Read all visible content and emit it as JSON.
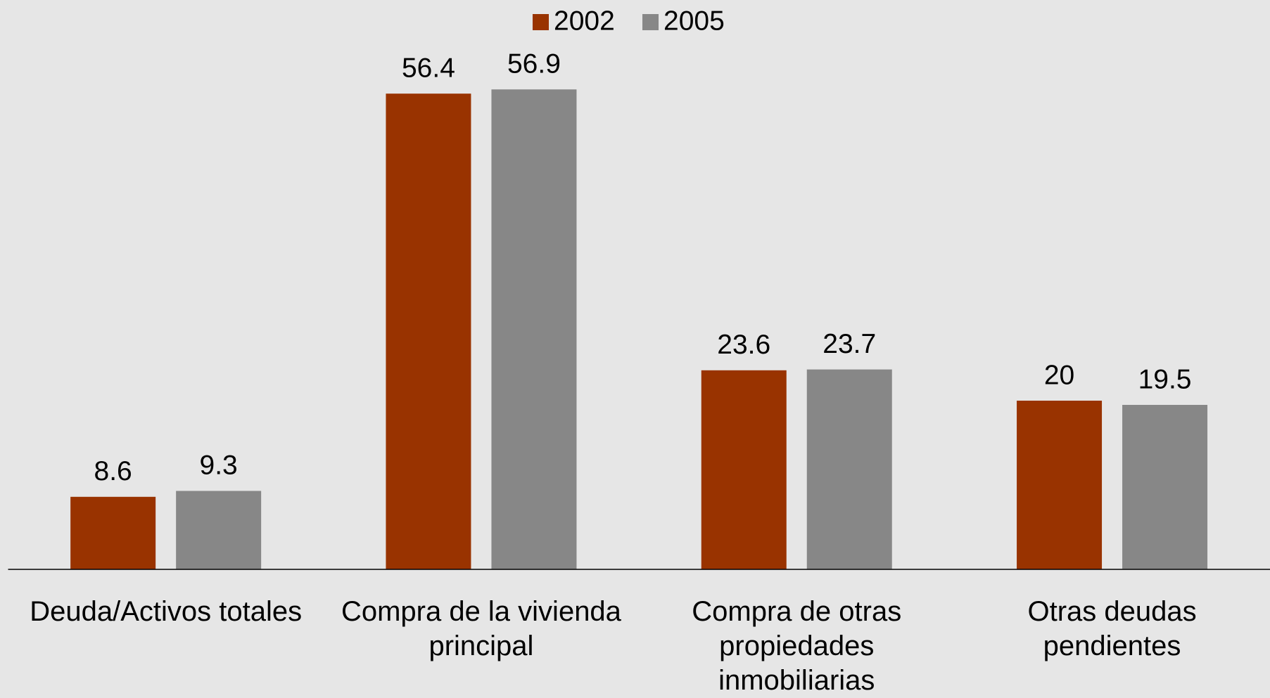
{
  "chart_data": {
    "type": "bar",
    "categories": [
      "Deuda/Activos totales",
      "Compra de la vivienda principal",
      "Compra de otras propiedades inmobiliarias",
      "Otras deudas pendientes"
    ],
    "series": [
      {
        "name": "2002",
        "color": "#993300",
        "values": [
          8.6,
          56.4,
          23.6,
          20
        ]
      },
      {
        "name": "2005",
        "color": "#878787",
        "values": [
          9.3,
          56.9,
          23.7,
          19.5
        ]
      }
    ],
    "ylim": [
      0,
      65
    ],
    "grid": false,
    "legend": "top"
  }
}
